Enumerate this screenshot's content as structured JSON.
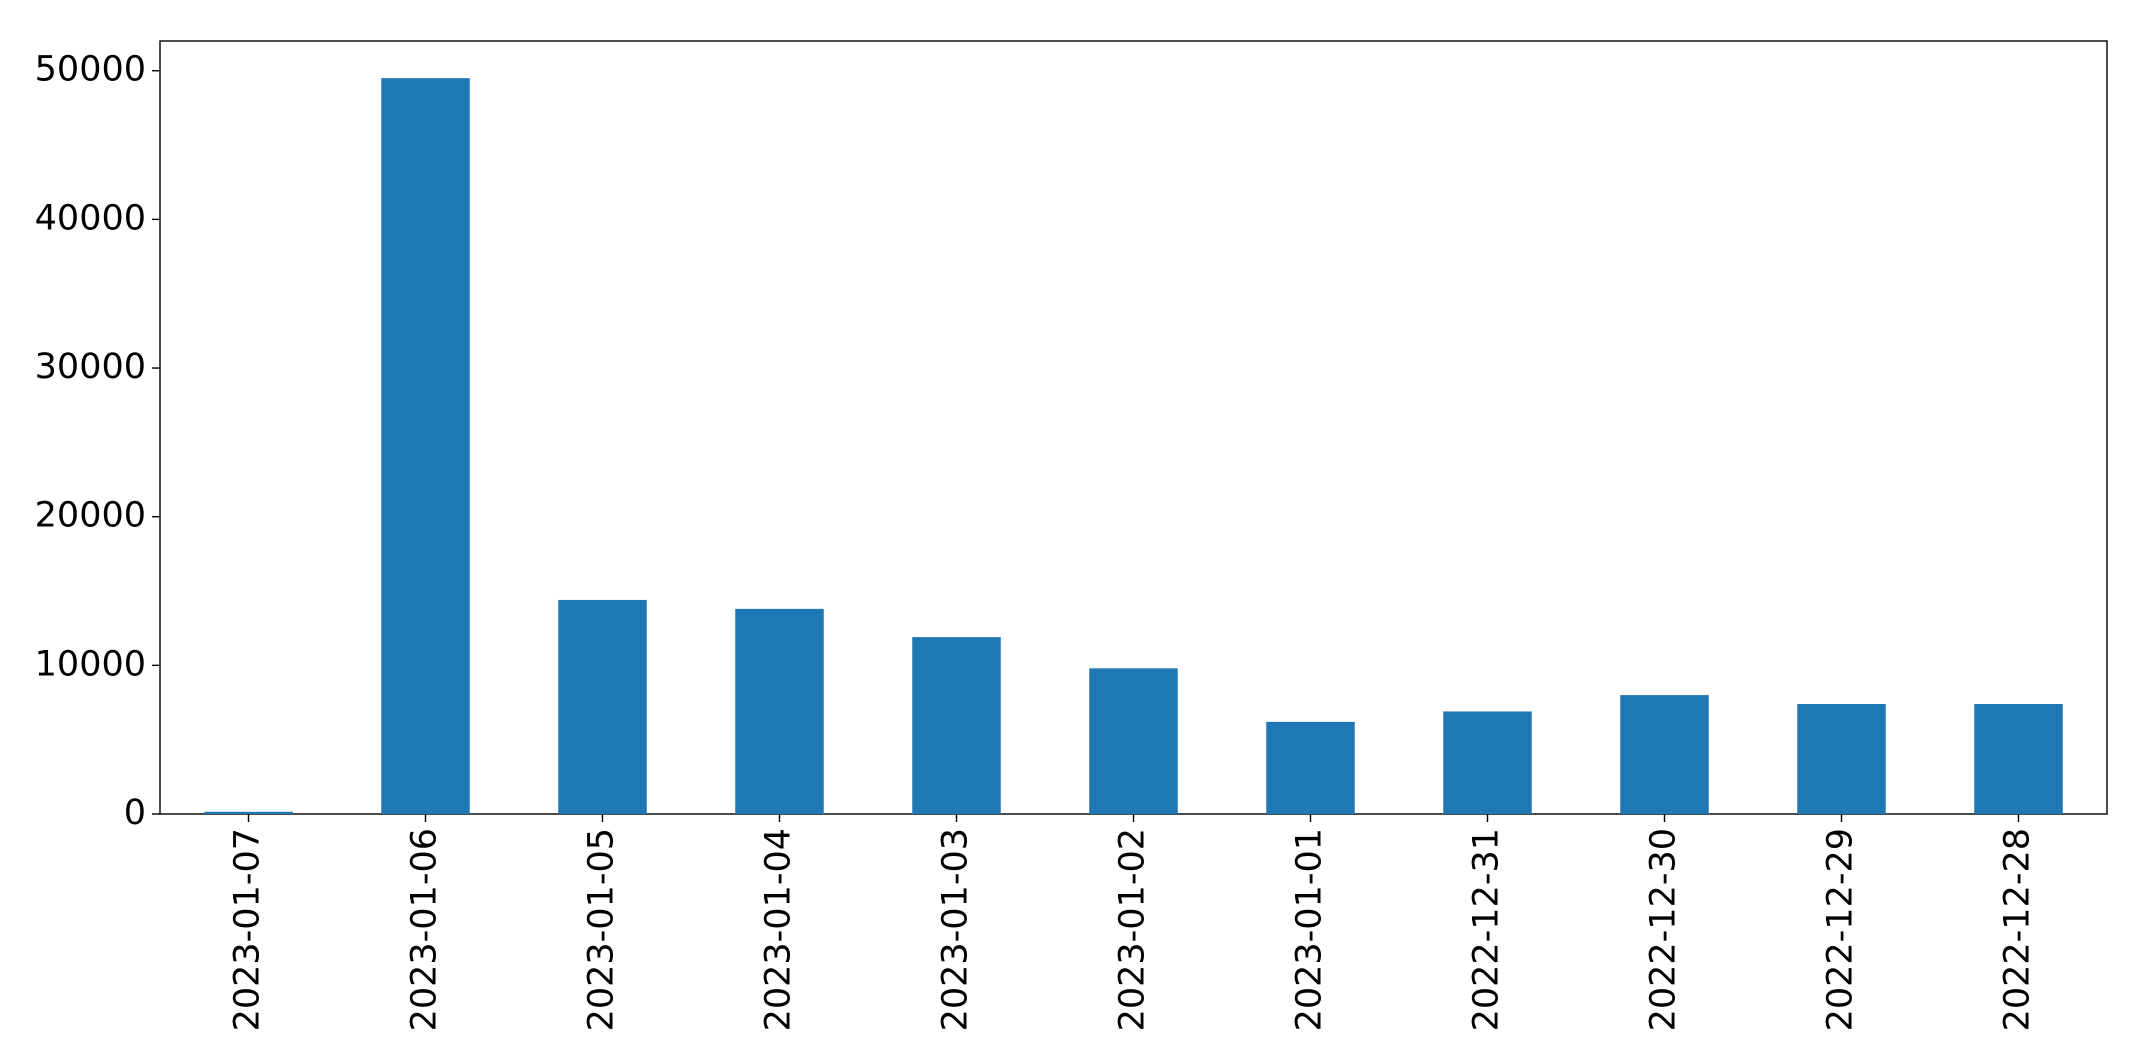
{
  "chart_data": {
    "type": "bar",
    "categories": [
      "2023-01-07",
      "2023-01-06",
      "2023-01-05",
      "2023-01-04",
      "2023-01-03",
      "2023-01-02",
      "2023-01-01",
      "2022-12-31",
      "2022-12-30",
      "2022-12-29",
      "2022-12-28"
    ],
    "values": [
      150,
      49500,
      14400,
      13800,
      11900,
      9800,
      6200,
      6900,
      8000,
      7400,
      7400
    ],
    "color": "#1f77b4",
    "ylim": [
      0,
      52000
    ],
    "yticks": [
      0,
      10000,
      20000,
      30000,
      40000,
      50000
    ],
    "grid": false
  }
}
